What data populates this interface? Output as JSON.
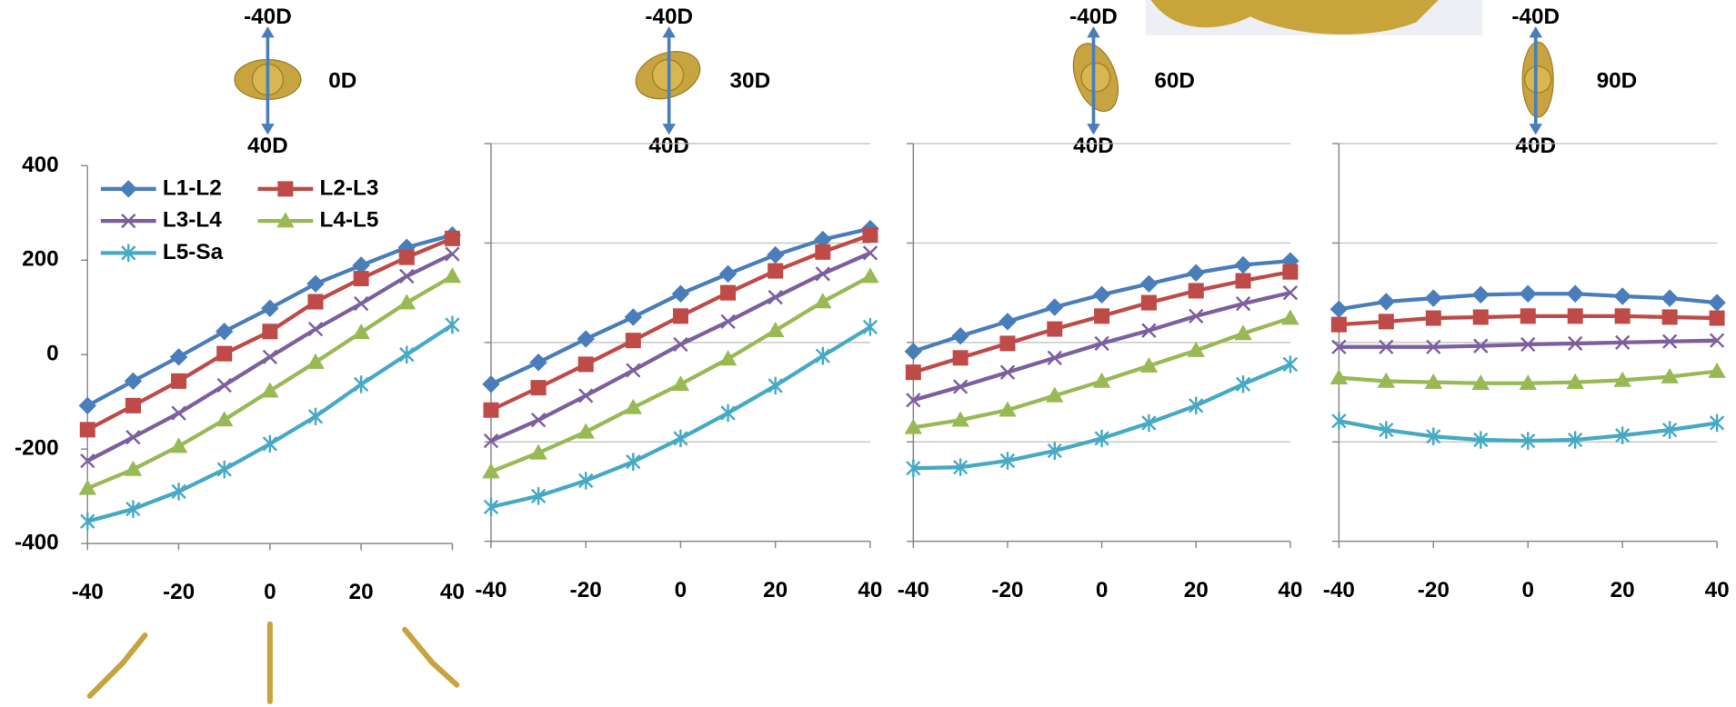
{
  "chart_data": [
    {
      "type": "line",
      "label_top": "-40D",
      "label_side": "0D",
      "label_bottom": "40D",
      "x": [
        -40,
        -30,
        -20,
        -10,
        0,
        10,
        20,
        30,
        40
      ],
      "xlim": [
        -40,
        40
      ],
      "xticks": [
        -40,
        -20,
        0,
        20,
        40
      ],
      "ylim": [
        -400,
        400
      ],
      "yticks": [
        -400,
        -200,
        0,
        200,
        400
      ],
      "grid": false,
      "series": [
        {
          "name": "L1-L2",
          "color": "#4a7ebb",
          "marker": "diamond",
          "values": [
            -108,
            -56,
            -5,
            49,
            98,
            150,
            189,
            227,
            253
          ]
        },
        {
          "name": "L2-L3",
          "color": "#be4b48",
          "marker": "square",
          "values": [
            -159,
            -108,
            -56,
            2,
            49,
            112,
            161,
            206,
            246
          ]
        },
        {
          "name": "L3-L4",
          "color": "#7d5fa0",
          "marker": "x",
          "values": [
            -225,
            -175,
            -124,
            -65,
            -5,
            54,
            108,
            166,
            213
          ]
        },
        {
          "name": "L4-L5",
          "color": "#98b954",
          "marker": "triangle",
          "values": [
            -283,
            -243,
            -194,
            -138,
            -77,
            -16,
            47,
            110,
            166
          ]
        },
        {
          "name": "L5-Sa",
          "color": "#46aac5",
          "marker": "star",
          "values": [
            -353,
            -327,
            -290,
            -243,
            -189,
            -131,
            -63,
            0,
            63
          ]
        }
      ]
    },
    {
      "type": "line",
      "label_top": "-40D",
      "label_side": "30D",
      "label_bottom": "40D",
      "x": [
        -40,
        -30,
        -20,
        -10,
        0,
        10,
        20,
        30,
        40
      ],
      "xlim": [
        -40,
        40
      ],
      "xticks": [
        -40,
        -20,
        0,
        20,
        40
      ],
      "ylim": [
        -400,
        400
      ],
      "yticks": [
        -400,
        -200,
        0,
        200,
        400
      ],
      "grid": true,
      "series": [
        {
          "color": "#4a7ebb",
          "marker": "diamond",
          "values": [
            -84,
            -40,
            7,
            51,
            98,
            138,
            176,
            207,
            229
          ]
        },
        {
          "color": "#be4b48",
          "marker": "square",
          "values": [
            -136,
            -91,
            -44,
            4,
            53,
            100,
            144,
            182,
            216
          ]
        },
        {
          "color": "#7d5fa0",
          "marker": "x",
          "values": [
            -198,
            -156,
            -107,
            -56,
            -4,
            42,
            91,
            138,
            180
          ]
        },
        {
          "color": "#98b954",
          "marker": "triangle",
          "values": [
            -260,
            -222,
            -180,
            -131,
            -84,
            -33,
            24,
            82,
            133
          ]
        },
        {
          "color": "#46aac5",
          "marker": "star",
          "values": [
            -331,
            -309,
            -278,
            -240,
            -193,
            -142,
            -87,
            -27,
            31
          ]
        }
      ]
    },
    {
      "type": "line",
      "label_top": "-40D",
      "label_side": "60D",
      "label_bottom": "40D",
      "x": [
        -40,
        -30,
        -20,
        -10,
        0,
        10,
        20,
        30,
        40
      ],
      "xlim": [
        -40,
        40
      ],
      "xticks": [
        -40,
        -20,
        0,
        20,
        40
      ],
      "ylim": [
        -400,
        400
      ],
      "yticks": [
        -400,
        -200,
        0,
        200,
        400
      ],
      "grid": true,
      "series": [
        {
          "color": "#4a7ebb",
          "marker": "diamond",
          "values": [
            -18,
            13,
            42,
            71,
            96,
            118,
            140,
            156,
            164
          ]
        },
        {
          "color": "#be4b48",
          "marker": "square",
          "values": [
            -60,
            -31,
            -2,
            27,
            53,
            80,
            104,
            124,
            142
          ]
        },
        {
          "color": "#7d5fa0",
          "marker": "x",
          "values": [
            -116,
            -89,
            -60,
            -31,
            -2,
            24,
            53,
            78,
            100
          ]
        },
        {
          "color": "#98b954",
          "marker": "triangle",
          "values": [
            -171,
            -156,
            -136,
            -107,
            -78,
            -47,
            -16,
            18,
            49
          ]
        },
        {
          "color": "#46aac5",
          "marker": "star",
          "values": [
            -253,
            -251,
            -238,
            -218,
            -193,
            -162,
            -127,
            -84,
            -44
          ]
        }
      ]
    },
    {
      "type": "line",
      "label_top": "-40D",
      "label_side": "90D",
      "label_bottom": "40D",
      "x": [
        -40,
        -30,
        -20,
        -10,
        0,
        10,
        20,
        30,
        40
      ],
      "xlim": [
        -40,
        40
      ],
      "xticks": [
        -40,
        -20,
        0,
        20,
        40
      ],
      "ylim": [
        -400,
        400
      ],
      "yticks": [
        -400,
        -200,
        0,
        200,
        400
      ],
      "grid": true,
      "series": [
        {
          "color": "#4a7ebb",
          "marker": "diamond",
          "values": [
            67,
            82,
            89,
            96,
            98,
            98,
            93,
            89,
            80
          ]
        },
        {
          "color": "#be4b48",
          "marker": "square",
          "values": [
            36,
            42,
            49,
            51,
            53,
            53,
            53,
            51,
            49
          ]
        },
        {
          "color": "#7d5fa0",
          "marker": "x",
          "values": [
            -9,
            -9,
            -9,
            -7,
            -4,
            -2,
            0,
            2,
            4
          ]
        },
        {
          "color": "#98b954",
          "marker": "triangle",
          "values": [
            -71,
            -78,
            -80,
            -82,
            -82,
            -80,
            -76,
            -69,
            -58
          ]
        },
        {
          "color": "#46aac5",
          "marker": "star",
          "values": [
            -158,
            -176,
            -189,
            -196,
            -198,
            -196,
            -187,
            -176,
            -162
          ]
        }
      ]
    }
  ]
}
